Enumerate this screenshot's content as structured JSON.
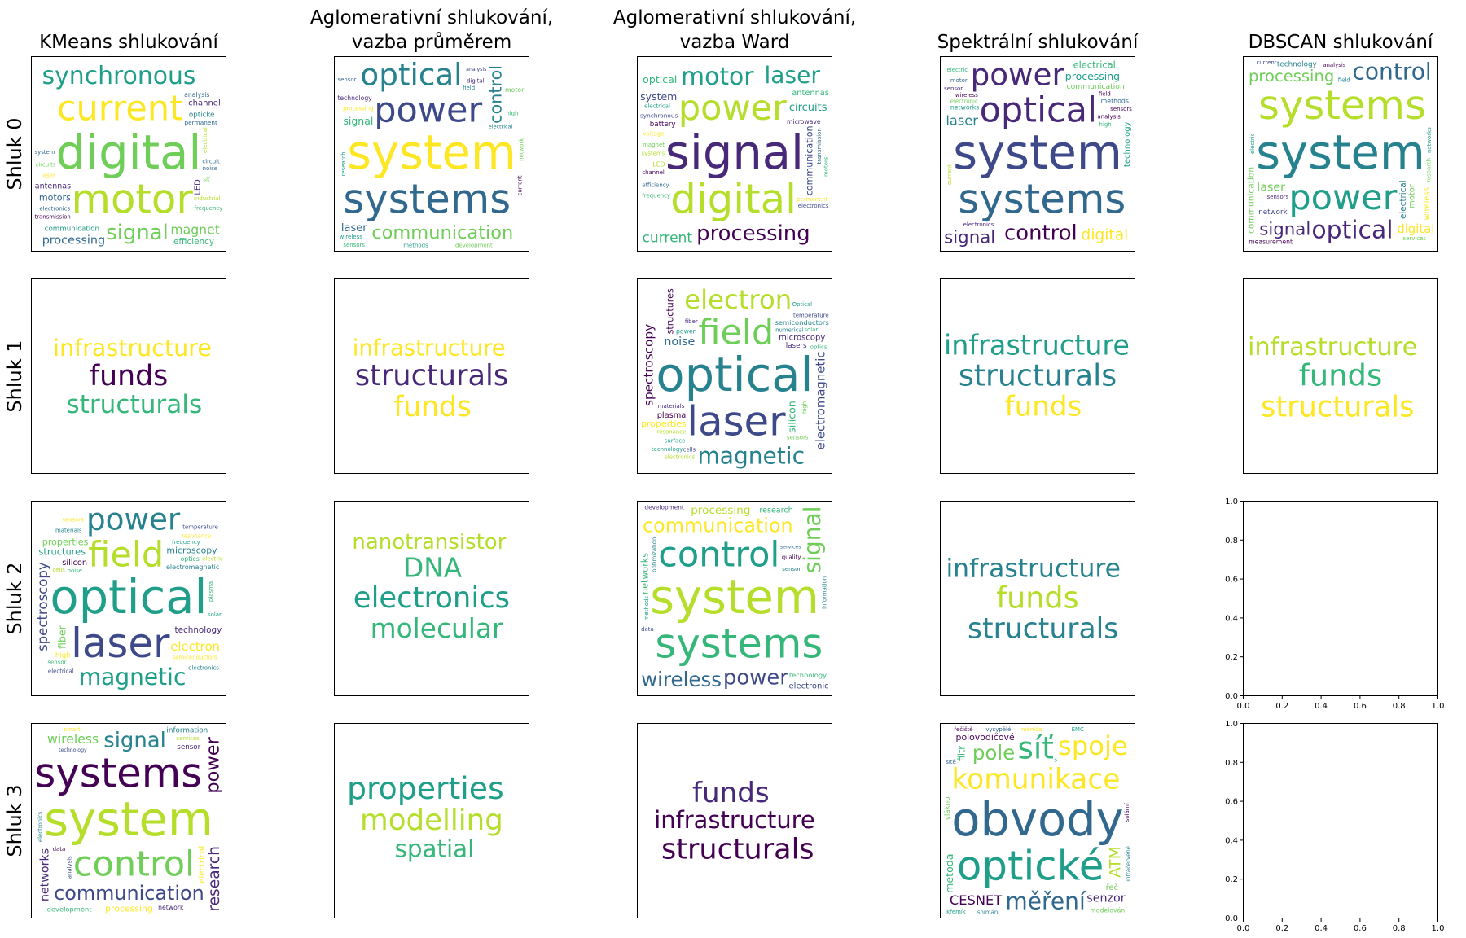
{
  "column_titles": [
    "KMeans shlukování",
    "Aglomerativní shlukování,\nvazba průměrem",
    "Aglomerativní shlukování,\nvazba Ward",
    "Spektrální shlukování",
    "DBSCAN shlukování"
  ],
  "row_labels": [
    "Shluk 0",
    "Shluk 1",
    "Shluk 2",
    "Shluk 3"
  ],
  "palette": [
    "#440154",
    "#482878",
    "#3e4989",
    "#31688e",
    "#26828e",
    "#1f9e89",
    "#35b779",
    "#6ece58",
    "#b5de2b",
    "#fde725"
  ],
  "chart_data": {
    "type": "wordcloud-grid",
    "empty_axes": {
      "xticks": [
        "0.0",
        "0.2",
        "0.4",
        "0.6",
        "0.8",
        "1.0"
      ],
      "yticks": [
        "0.0",
        "0.2",
        "0.4",
        "0.6",
        "0.8",
        "1.0"
      ],
      "xlim": [
        0,
        1
      ],
      "ylim": [
        0,
        1
      ]
    },
    "clouds": [
      [
        {
          "words": [
            "digital",
            "motor",
            "current",
            "synchronous",
            "signal",
            "processing",
            "magnet",
            "communication",
            "antennas",
            "efficiency",
            "permanent",
            "channel",
            "motors",
            "LED",
            "optické",
            "analysis",
            "system",
            "circuit",
            "circuits",
            "noise",
            "transmission",
            "electronics",
            "electrical",
            "industrial",
            "frequency",
            "laser",
            "modulation",
            "semiconductor",
            "spectrum",
            "síť"
          ]
        },
        {
          "words": [
            "system",
            "systems",
            "power",
            "optical",
            "control",
            "communication",
            "signal",
            "processing",
            "technology",
            "laser",
            "networks",
            "electrical",
            "wireless",
            "analysis",
            "digital",
            "motor",
            "research",
            "sensors",
            "methods",
            "electronics",
            "development",
            "sensor",
            "measurement",
            "electromagnetic",
            "network",
            "field",
            "electric",
            "high",
            "current"
          ]
        },
        {
          "words": [
            "signal",
            "digital",
            "power",
            "motor",
            "processing",
            "laser",
            "system",
            "current",
            "microwave",
            "circuits",
            "synchronous",
            "optical",
            "communication",
            "antennas",
            "battery",
            "LED",
            "permanent",
            "semiconductor",
            "efficiency",
            "magnet",
            "electrical",
            "systems",
            "frequency",
            "channel",
            "transmission",
            "motors",
            "voltage",
            "electronics",
            "communications"
          ]
        },
        {
          "words": [
            "system",
            "systems",
            "optical",
            "power",
            "control",
            "communication",
            "processing",
            "signal",
            "digital",
            "laser",
            "electrical",
            "technology",
            "analysis",
            "methods",
            "electromagnetic",
            "networks",
            "electronics",
            "wireless",
            "sensors",
            "high",
            "measurement",
            "research",
            "current",
            "electronic",
            "sensor",
            "motor",
            "field",
            "development",
            "electric",
            "network"
          ]
        },
        {
          "words": [
            "system",
            "systems",
            "power",
            "optical",
            "communication",
            "control",
            "processing",
            "signal",
            "digital",
            "electrical",
            "laser",
            "wireless",
            "technology",
            "motor",
            "network",
            "measurement",
            "analysis",
            "electric",
            "networks",
            "sensors",
            "field",
            "development",
            "services",
            "information",
            "electronics",
            "research",
            "current"
          ]
        }
      ],
      [
        {
          "words": [
            "funds",
            "structurals",
            "infrastructure"
          ]
        },
        {
          "words": [
            "structurals",
            "infrastructure",
            "funds"
          ]
        },
        {
          "words": [
            "optical",
            "laser",
            "field",
            "spectroscopy",
            "electron",
            "magnetic",
            "microscopy",
            "properties",
            "electromagnetic",
            "semiconductors",
            "noise",
            "silicon",
            "structures",
            "plasma",
            "lasers",
            "power",
            "materials",
            "resonance",
            "numerical",
            "high",
            "surface",
            "fiber",
            "cells",
            "optics",
            "sensors",
            "solar",
            "electronics",
            "temperature",
            "technology",
            "Optical"
          ]
        },
        {
          "words": [
            "structurals",
            "funds",
            "infrastructure"
          ]
        },
        {
          "words": [
            "funds",
            "infrastructure",
            "structurals"
          ]
        }
      ],
      [
        {
          "words": [
            "optical",
            "laser",
            "field",
            "power",
            "spectroscopy",
            "magnetic",
            "electromagnetic",
            "microscopy",
            "electron",
            "technology",
            "structures",
            "fiber",
            "properties",
            "silicon",
            "high",
            "optics",
            "semiconductors",
            "frequency",
            "noise",
            "materials",
            "cells",
            "temperature",
            "resonance",
            "plasma",
            "sensors",
            "electronics",
            "solar",
            "sensor",
            "electric",
            "electrical"
          ]
        },
        {
          "words": [
            "electronics",
            "DNA",
            "molecular",
            "nanotransistor"
          ]
        },
        {
          "words": [
            "system",
            "systems",
            "control",
            "communication",
            "power",
            "signal",
            "wireless",
            "processing",
            "research",
            "technology",
            "development",
            "electronic",
            "networks",
            "analysis",
            "sensor",
            "services",
            "network",
            "methods",
            "digital",
            "electrical",
            "quality",
            "data",
            "information",
            "energy",
            "electric",
            "optimization",
            "smart",
            "measurement"
          ]
        },
        {
          "words": [
            "funds",
            "infrastructure",
            "structurals"
          ]
        },
        {
          "words": []
        }
      ],
      [
        {
          "words": [
            "system",
            "systems",
            "control",
            "communication",
            "signal",
            "power",
            "wireless",
            "processing",
            "research",
            "development",
            "networks",
            "electrical",
            "information",
            "technology",
            "sensor",
            "network",
            "data",
            "analysis",
            "services",
            "digital",
            "methods",
            "electronic",
            "electric",
            "quality",
            "smart",
            "optimization",
            "management",
            "measurement",
            "electronics",
            "security"
          ]
        },
        {
          "words": [
            "modelling",
            "properties",
            "spatial"
          ]
        },
        {
          "words": [
            "infrastructure",
            "funds",
            "structurals"
          ]
        },
        {
          "words": [
            "obvody",
            "optické",
            "komunikace",
            "síť",
            "spoje",
            "měření",
            "pole",
            "polovodičové",
            "ATM",
            "CESNET",
            "senzor",
            "metoda",
            "filtr",
            "řeč",
            "vlákno",
            "modelování",
            "měniče",
            "křemík",
            "snímání",
            "sítě",
            "EMC",
            "vysypělé",
            "solární",
            "řečiště",
            "infračervené",
            "superconductor",
            "silicon",
            "electromechanical",
            "s",
            "permanent"
          ]
        },
        {
          "words": []
        }
      ]
    ]
  }
}
